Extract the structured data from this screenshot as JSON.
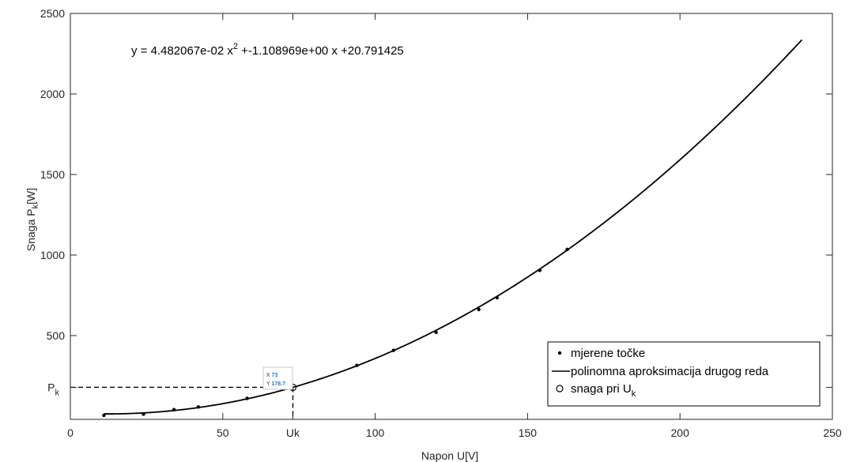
{
  "chart_data": {
    "type": "scatter",
    "title": "",
    "xlabel": "Napon U[V]",
    "ylabel_parts": {
      "main": "Snaga P",
      "sub": "k",
      "tail": "[W]"
    },
    "xlim": [
      0,
      250
    ],
    "ylim": [
      -20,
      2500
    ],
    "xticks": [
      {
        "value": 0,
        "label": "0"
      },
      {
        "value": 50,
        "label": "50"
      },
      {
        "value": 73,
        "label": "Uk"
      },
      {
        "value": 100,
        "label": "100"
      },
      {
        "value": 150,
        "label": "150"
      },
      {
        "value": 200,
        "label": "200"
      },
      {
        "value": 250,
        "label": "250"
      }
    ],
    "yticks": [
      {
        "value": 178.7,
        "label": "P",
        "sub": "k"
      },
      {
        "value": 500,
        "label": "500"
      },
      {
        "value": 1000,
        "label": "1000"
      },
      {
        "value": 1500,
        "label": "1500"
      },
      {
        "value": 2000,
        "label": "2000"
      },
      {
        "value": 2500,
        "label": "2500"
      }
    ],
    "series": [
      {
        "name": "mjerene točke",
        "style": "dots",
        "x": [
          11,
          24,
          34,
          42,
          58,
          94,
          106,
          120,
          134,
          140,
          154,
          163
        ],
        "y": [
          5,
          12,
          40,
          57,
          110,
          315,
          408,
          520,
          662,
          735,
          905,
          1035
        ]
      },
      {
        "name": "polinomna aproksimacija drugog reda",
        "style": "line",
        "coefficients": [
          0.04482067,
          -1.108969,
          20.791425
        ],
        "x_range": [
          11,
          240
        ]
      },
      {
        "name_parts": {
          "main": "snaga pri U",
          "sub": "k"
        },
        "style": "circle",
        "x": [
          73
        ],
        "y": [
          178.7
        ]
      }
    ],
    "annotations": {
      "equation": {
        "before": "y = 4.482067e-02 x",
        "sup": "2",
        "after": " +-1.108969e+00 x +20.791425"
      },
      "datatip": {
        "x_label": "X",
        "x_value": "73",
        "y_label": "Y",
        "y_value": "178.7"
      },
      "guide_lines": {
        "x": 73,
        "y": 178.7,
        "style": "dashed"
      }
    },
    "legend_position": "bottom-right",
    "grid": false
  }
}
